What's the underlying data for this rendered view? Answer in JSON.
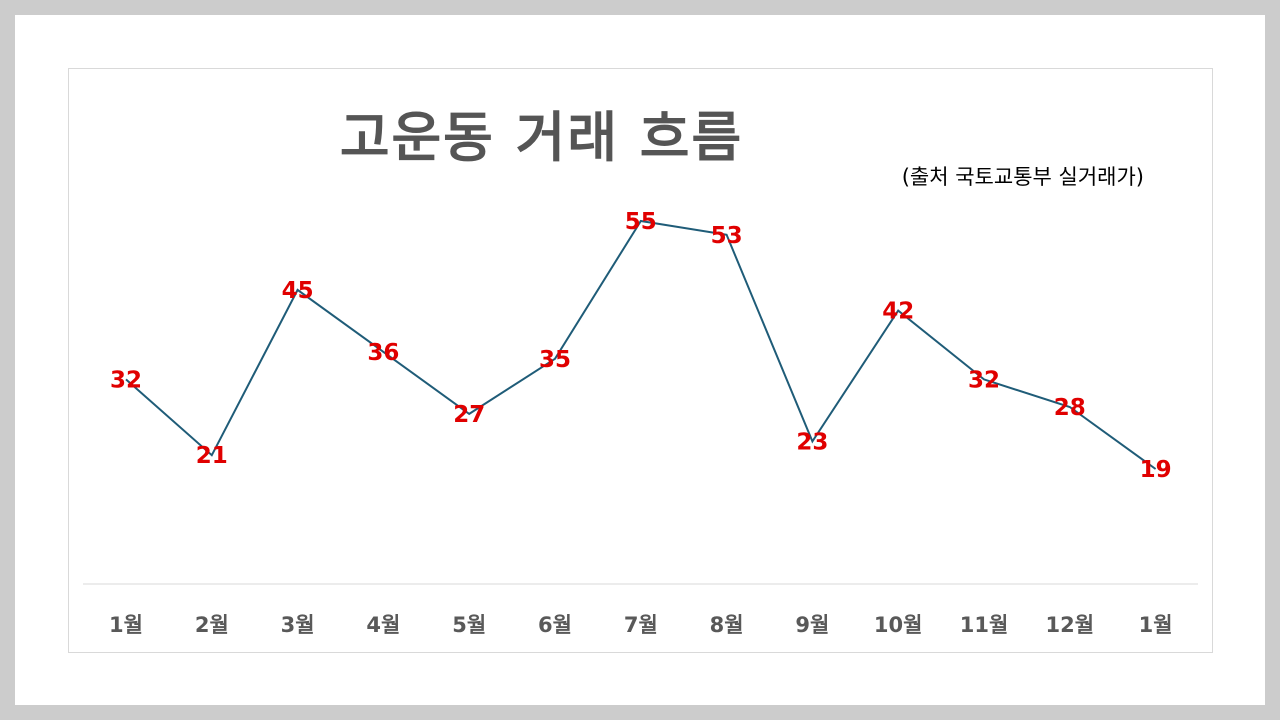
{
  "chart_data": {
    "type": "line",
    "title": "고운동 거래 흐름",
    "subtitle": "(출처 국토교통부 실거래가)",
    "categories": [
      "1월",
      "2월",
      "3월",
      "4월",
      "5월",
      "6월",
      "7월",
      "8월",
      "9월",
      "10월",
      "11월",
      "12월",
      "1월"
    ],
    "series": [
      {
        "values": [
          32,
          21,
          45,
          36,
          27,
          35,
          55,
          53,
          23,
          42,
          32,
          28,
          19
        ]
      }
    ],
    "ylim": [
      0,
      60
    ],
    "grid": false,
    "legend": "none",
    "data_labels": true,
    "colors": {
      "line": "#1f5c78",
      "data_label": "#e00000",
      "title": "#555555",
      "tick_label": "#595959",
      "baseline": "#d9d9d9"
    }
  }
}
